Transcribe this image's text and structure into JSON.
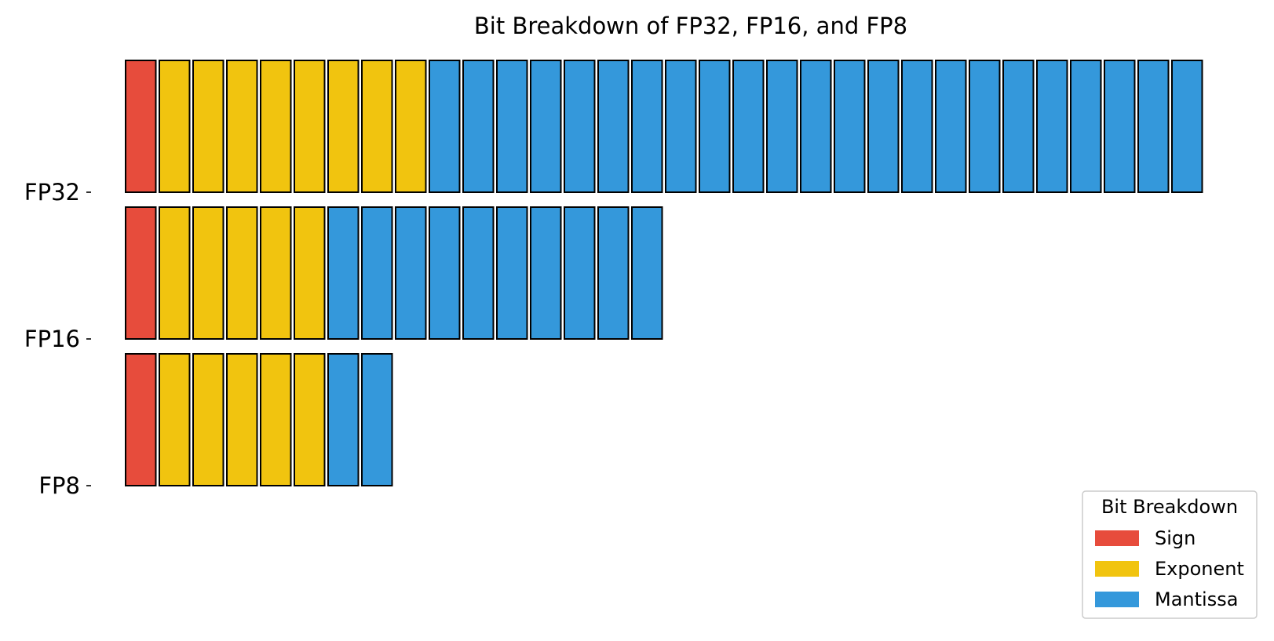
{
  "chart_data": {
    "type": "bar",
    "title": "Bit Breakdown of FP32, FP16, and FP8",
    "xlabel": "",
    "ylabel": "",
    "categories": [
      "FP32",
      "FP16",
      "FP8"
    ],
    "series": [
      {
        "name": "Sign",
        "values": [
          1,
          1,
          1
        ],
        "color": "#e74c3c"
      },
      {
        "name": "Exponent",
        "values": [
          8,
          5,
          5
        ],
        "color": "#f1c40f"
      },
      {
        "name": "Mantissa",
        "values": [
          23,
          10,
          2
        ],
        "color": "#3498db"
      }
    ],
    "legend": {
      "title": "Bit Breakdown",
      "position": "bottom-right"
    },
    "grid": false,
    "bit_edge_color": "#000000"
  }
}
